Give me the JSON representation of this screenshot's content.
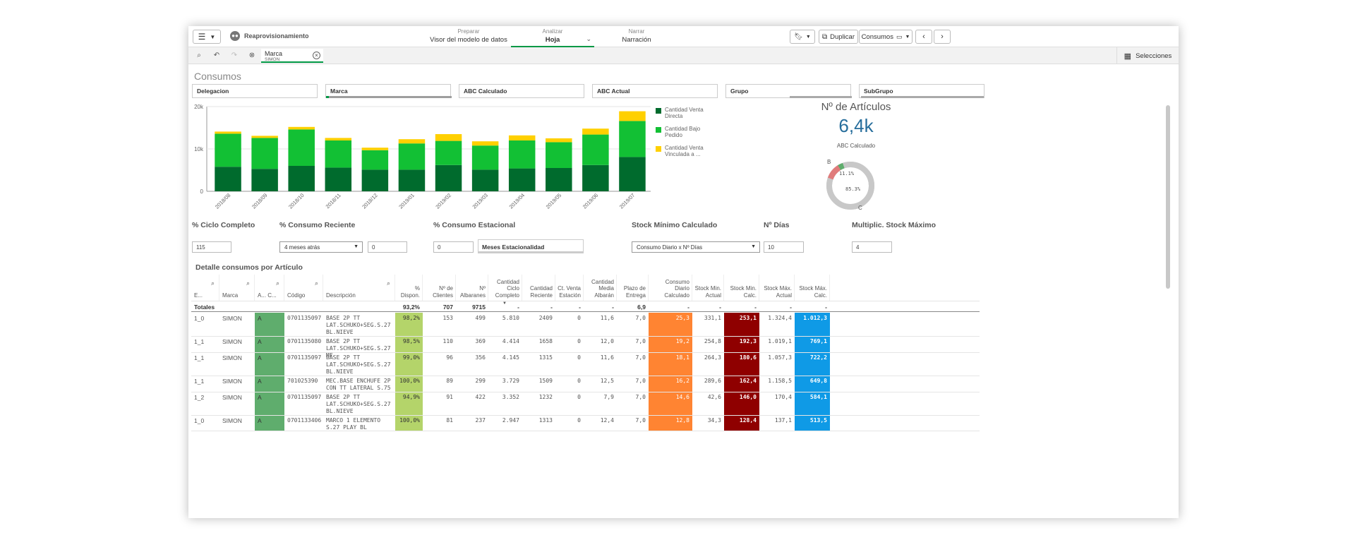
{
  "topbar": {
    "app_name": "Reaprovisionamiento",
    "steps": [
      {
        "small": "Preparar",
        "label": "Visor del modelo de datos"
      },
      {
        "small": "Analizar",
        "label": "Hoja"
      },
      {
        "small": "Narrar",
        "label": "Narración"
      }
    ],
    "duplicate_label": "Duplicar",
    "sheet_menu_label": "Consumos"
  },
  "selection": {
    "chip_field": "Marca",
    "chip_value": "SIMON",
    "selections_label": "Selecciones"
  },
  "sheet_title": "Consumos",
  "filters": [
    "Delegacion",
    "Marca",
    "ABC Calculado",
    "ABC Actual",
    "Grupo",
    "SubGrupo"
  ],
  "chart_data": {
    "type": "bar",
    "stacked": true,
    "categories": [
      "2018/08",
      "2018/09",
      "2018/10",
      "2018/11",
      "2018/12",
      "2019/01",
      "2019/02",
      "2019/03",
      "2019/04",
      "2019/05",
      "2019/06",
      "2019/07"
    ],
    "series": [
      {
        "name": "Cantidad Venta Directa",
        "color": "#006b2d",
        "values": [
          5800,
          5300,
          6000,
          5600,
          5100,
          5100,
          6200,
          5100,
          5400,
          5500,
          6200,
          8100
        ]
      },
      {
        "name": "Cantidad Bajo Pedido",
        "color": "#12c034",
        "values": [
          7800,
          7300,
          8600,
          6400,
          4600,
          6200,
          5700,
          5700,
          6600,
          6100,
          7200,
          8500
        ]
      },
      {
        "name": "Cantidad Venta Vinculada a ...",
        "color": "#ffd000",
        "values": [
          500,
          500,
          600,
          600,
          600,
          1000,
          1600,
          1000,
          1200,
          900,
          1400,
          2300
        ]
      }
    ],
    "yticks": [
      "0",
      "10k",
      "20k"
    ],
    "ylim": [
      0,
      20000
    ],
    "legend_position": "right",
    "grid": true
  },
  "kpi": {
    "title": "Nº de Artículos",
    "value": "6,4k",
    "subtitle": "ABC Calculado",
    "donut": [
      {
        "label": "B",
        "pct_label": "11.1%",
        "value": 11.1,
        "color": "#e07b7b"
      },
      {
        "label": "C",
        "pct_label": "85.3%",
        "value": 85.3,
        "color": "#c8c8c8"
      },
      {
        "label": "A",
        "pct_label": "",
        "value": 3.6,
        "color": "#5fad6d"
      }
    ]
  },
  "params": {
    "ciclo_label": "% Ciclo Completo",
    "ciclo_value": "115",
    "reciente_label": "% Consumo Reciente",
    "reciente_select": "4 meses atrás",
    "reciente_value": "0",
    "estacional_label": "% Consumo Estacional",
    "estacional_value": "0",
    "estacional_field": "Meses Estacionalidad",
    "stock_min_label": "Stock Mínimo Calculado",
    "stock_min_select": "Consumo Diario x Nº Días",
    "dias_label": "Nº Días",
    "dias_value": "10",
    "multiplic_label": "Multiplic. Stock Máximo",
    "multiplic_value": "4"
  },
  "table": {
    "title": "Detalle consumos por Artículo",
    "headers": [
      "E...",
      "Marca",
      "A... C...",
      "Código",
      "Descripción",
      "% Dispon.",
      "Nº de Clientes",
      "Nº Albaranes",
      "Cantidad Ciclo Completo",
      "Cantidad Reciente",
      "Ct. Venta Estación",
      "Cantidad Media Albarán",
      "Plazo de Entrega",
      "Consumo Diario Calculado",
      "Stock Min. Actual",
      "Stock Min. Calc.",
      "Stock Máx. Actual",
      "Stock Máx. Calc."
    ],
    "totals": [
      "Totales",
      "",
      "",
      "",
      "",
      "93,2%",
      "707",
      "9715",
      "-",
      "-",
      "-",
      "-",
      "6,9",
      "-",
      "-",
      "-",
      "-",
      "-"
    ],
    "rows": [
      [
        "1_0",
        "SIMON",
        "A",
        "0701135097",
        "BASE 2P TT LAT.SCHUKO+SEG.S.27 BL.NIEVE",
        "98,2%",
        "153",
        "499",
        "5.810",
        "2409",
        "0",
        "11,6",
        "7,0",
        "25,3",
        "331,1",
        "253,1",
        "1.324,4",
        "1.012,3"
      ],
      [
        "1_1",
        "SIMON",
        "A",
        "0701135080",
        "BASE 2P TT LAT.SCHUKO+SEG.S.27 MF",
        "98,5%",
        "110",
        "369",
        "4.414",
        "1658",
        "0",
        "12,0",
        "7,0",
        "19,2",
        "254,8",
        "192,3",
        "1.019,1",
        "769,1"
      ],
      [
        "1_1",
        "SIMON",
        "A",
        "0701135097",
        "BASE 2P TT LAT.SCHUKO+SEG.S.27 BL.NIEVE",
        "99,0%",
        "96",
        "356",
        "4.145",
        "1315",
        "0",
        "11,6",
        "7,0",
        "18,1",
        "264,3",
        "180,6",
        "1.057,3",
        "722,2"
      ],
      [
        "1_1",
        "SIMON",
        "A",
        "701025390",
        "MEC.BASE ENCHUFE 2P CON TT LATERAL S.75",
        "100,0%",
        "89",
        "299",
        "3.729",
        "1509",
        "0",
        "12,5",
        "7,0",
        "16,2",
        "289,6",
        "162,4",
        "1.158,5",
        "649,8"
      ],
      [
        "1_2",
        "SIMON",
        "A",
        "0701135097",
        "BASE 2P TT LAT.SCHUKO+SEG.S.27 BL.NIEVE",
        "94,9%",
        "91",
        "422",
        "3.352",
        "1232",
        "0",
        "7,9",
        "7,0",
        "14,6",
        "42,6",
        "146,0",
        "170,4",
        "584,1"
      ],
      [
        "1_0",
        "SIMON",
        "A",
        "0701133406",
        "MARCO 1 ELEMENTO S.27 PLAY BL",
        "100,0%",
        "81",
        "237",
        "2.947",
        "1313",
        "0",
        "12,4",
        "7,0",
        "12,8",
        "34,3",
        "128,4",
        "137,1",
        "513,5"
      ]
    ],
    "colors": {
      "abc": "#5fad6d",
      "dispon": "#b4d46a",
      "consumo": "#ff8432",
      "stockmin": "#8f0000",
      "stockmax": "#0f9ae6"
    }
  }
}
